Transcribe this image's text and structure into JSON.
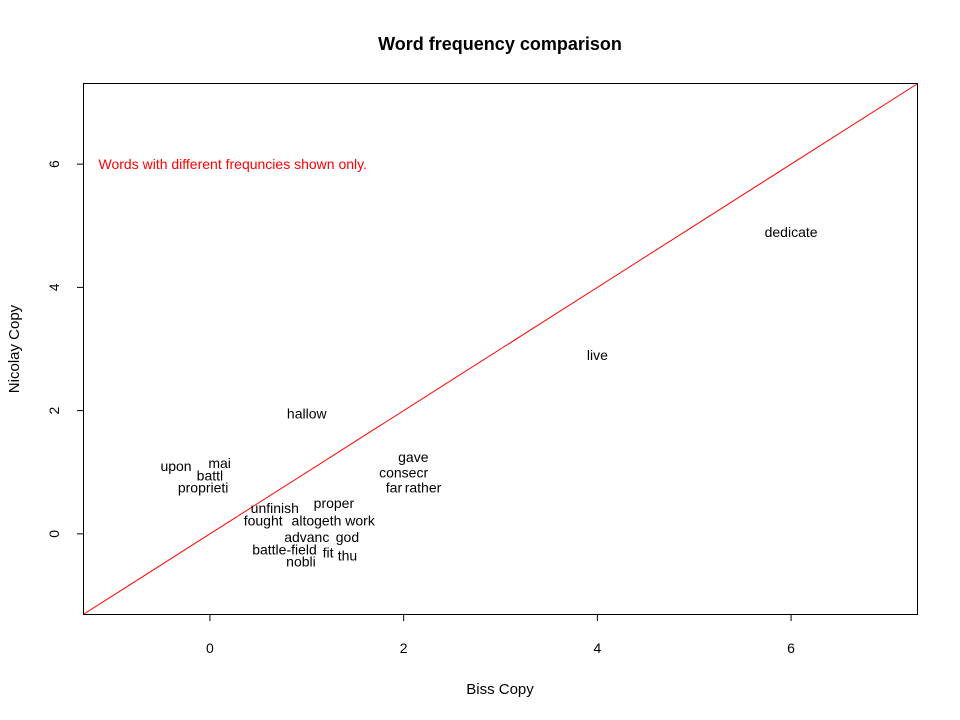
{
  "chart_data": {
    "type": "scatter",
    "title": "Word frequency comparison",
    "xlabel": "Biss Copy",
    "ylabel": "Nicolay Copy",
    "xlim": [
      -1.3,
      7.3
    ],
    "ylim": [
      -1.3,
      7.3
    ],
    "xticks": [
      0,
      2,
      4,
      6
    ],
    "yticks": [
      0,
      2,
      4,
      6
    ],
    "grid": false,
    "annotation": {
      "text": "Words with different frequncies shown only.",
      "color": "#ff0000",
      "x": -1.15,
      "y": 6.0
    },
    "reference_line": {
      "type": "identity",
      "color": "#ff0000"
    },
    "points": [
      {
        "label": "dedicate",
        "x": 6.0,
        "y": 4.9
      },
      {
        "label": "live",
        "x": 4.0,
        "y": 2.9
      },
      {
        "label": "hallow",
        "x": 1.0,
        "y": 1.95
      },
      {
        "label": "gave",
        "x": 2.1,
        "y": 1.25
      },
      {
        "label": "consecr",
        "x": 2.0,
        "y": 1.0
      },
      {
        "label": "far",
        "x": 1.9,
        "y": 0.75
      },
      {
        "label": "rather",
        "x": 2.2,
        "y": 0.75
      },
      {
        "label": "upon",
        "x": -0.35,
        "y": 1.1
      },
      {
        "label": "mai",
        "x": 0.1,
        "y": 1.15
      },
      {
        "label": "battl",
        "x": 0.0,
        "y": 0.95
      },
      {
        "label": "proprieti",
        "x": -0.07,
        "y": 0.75
      },
      {
        "label": "unfinish",
        "x": 0.67,
        "y": 0.42
      },
      {
        "label": "proper",
        "x": 1.28,
        "y": 0.5
      },
      {
        "label": "fought",
        "x": 0.55,
        "y": 0.22
      },
      {
        "label": "altogeth",
        "x": 1.1,
        "y": 0.22
      },
      {
        "label": "work",
        "x": 1.55,
        "y": 0.22
      },
      {
        "label": "advanc",
        "x": 1.0,
        "y": -0.05
      },
      {
        "label": "god",
        "x": 1.42,
        "y": -0.05
      },
      {
        "label": "battle-field",
        "x": 0.77,
        "y": -0.25
      },
      {
        "label": "fit",
        "x": 1.22,
        "y": -0.3
      },
      {
        "label": "thu",
        "x": 1.42,
        "y": -0.35
      },
      {
        "label": "nobli",
        "x": 0.94,
        "y": -0.45
      }
    ]
  }
}
